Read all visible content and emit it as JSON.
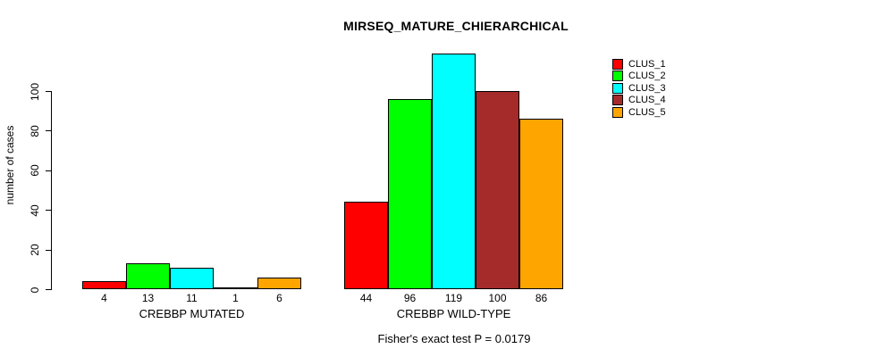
{
  "title": "MIRSEQ_MATURE_CHIERARCHICAL",
  "footer": "Fisher's exact test P = 0.0179",
  "chart_data": {
    "type": "bar",
    "title": "MIRSEQ_MATURE_CHIERARCHICAL",
    "ylabel": "number of cases",
    "xlabel": "",
    "ylim": [
      0,
      120
    ],
    "yticks": [
      0,
      20,
      40,
      60,
      80,
      100
    ],
    "grid": false,
    "legend_position": "top-right",
    "bar_border_color": "#000000",
    "background_color": "#ffffff",
    "categories": [
      "CREBBP MUTATED",
      "CREBBP WILD-TYPE"
    ],
    "series": [
      {
        "name": "CLUS_1",
        "color": "#ff0000",
        "values": [
          4,
          44
        ]
      },
      {
        "name": "CLUS_2",
        "color": "#00ff00",
        "values": [
          13,
          96
        ]
      },
      {
        "name": "CLUS_3",
        "color": "#00ffff",
        "values": [
          11,
          119
        ]
      },
      {
        "name": "CLUS_4",
        "color": "#a52a2a",
        "values": [
          1,
          100
        ]
      },
      {
        "name": "CLUS_5",
        "color": "#ffa500",
        "values": [
          6,
          86
        ]
      }
    ],
    "groups": [
      {
        "label": "CREBBP MUTATED",
        "values": [
          4,
          13,
          11,
          1,
          6
        ]
      },
      {
        "label": "CREBBP WILD-TYPE",
        "values": [
          44,
          96,
          119,
          100,
          86
        ]
      }
    ],
    "annotation": "Fisher's exact test P = 0.0179"
  }
}
